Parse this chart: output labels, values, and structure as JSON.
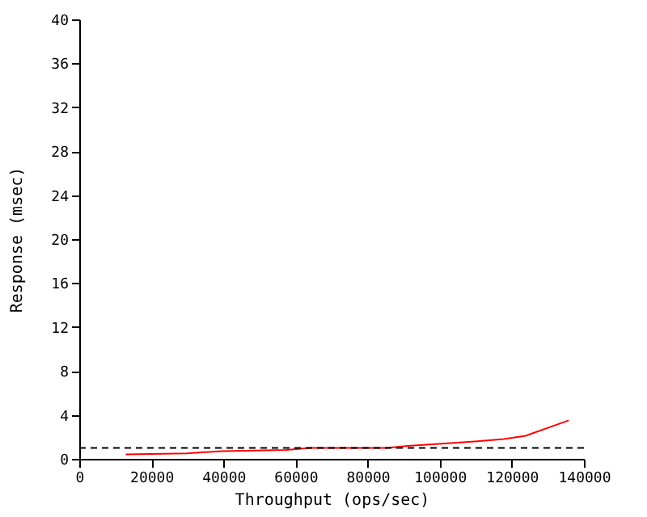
{
  "chart_data": {
    "type": "line",
    "xlabel": "Throughput (ops/sec)",
    "ylabel": "Response (msec)",
    "x": [
      12900,
      29800,
      39500,
      57400,
      64100,
      85200,
      91800,
      101500,
      110500,
      117800,
      123800,
      135800
    ],
    "series": [
      {
        "color": "#ff0000",
        "values": [
          0.4,
          0.5,
          0.7,
          0.8,
          1.0,
          1.0,
          1.2,
          1.4,
          1.6,
          1.8,
          2.1,
          3.5
        ]
      }
    ],
    "xlim": [
      0,
      140000
    ],
    "xticks": [
      0,
      20000,
      40000,
      60000,
      80000,
      100000,
      120000,
      140000
    ],
    "ylim": [
      0,
      40
    ],
    "yticks": [
      0,
      4,
      8,
      12,
      16,
      20,
      24,
      28,
      32,
      36,
      40
    ],
    "ref_lines": [
      {
        "axis": "y",
        "value": 1,
        "color": "#000000",
        "line_style": "dashed"
      }
    ],
    "grid": false,
    "marker": "none",
    "line_style": "solid"
  }
}
